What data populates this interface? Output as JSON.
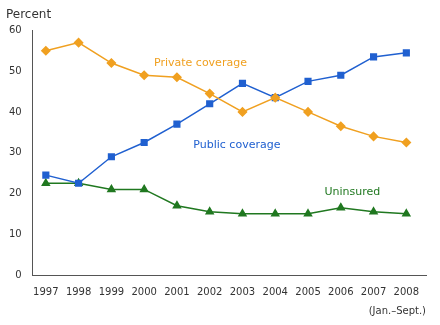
{
  "chart_data": {
    "type": "line",
    "ylabel": "Percent",
    "xlabel": "(Jan.–Sept.)",
    "x": [
      1997,
      1998,
      1999,
      2000,
      2001,
      2002,
      2003,
      2004,
      2005,
      2006,
      2007,
      2008
    ],
    "series": [
      {
        "name": "Private coverage",
        "color": "#f0a020",
        "marker": "diamond",
        "values": [
          55,
          57,
          52,
          49,
          48.5,
          44.5,
          40,
          43.5,
          40,
          36.5,
          34,
          32.5
        ]
      },
      {
        "name": "Public coverage",
        "color": "#2060d0",
        "marker": "square",
        "values": [
          24.5,
          22.5,
          29,
          32.5,
          37,
          42,
          47,
          43.5,
          47.5,
          49,
          53.5,
          54.5
        ]
      },
      {
        "name": "Uninsured",
        "color": "#207820",
        "marker": "triangle",
        "values": [
          22.5,
          22.5,
          21,
          21,
          17,
          15.5,
          15,
          15,
          15,
          16.5,
          15.5,
          15
        ]
      }
    ],
    "annotations": [
      {
        "text": "Private coverage",
        "x": 2000.3,
        "y": 50.5,
        "color": "#f0a020"
      },
      {
        "text": "Public coverage",
        "x": 2001.5,
        "y": 30.5,
        "color": "#2060d0"
      },
      {
        "text": "Uninsured",
        "x": 2005.5,
        "y": 19.0,
        "color": "#207820"
      }
    ],
    "xlim": [
      1996.6,
      2008.6
    ],
    "xticks": [
      1997,
      1998,
      1999,
      2000,
      2001,
      2002,
      2003,
      2004,
      2005,
      2006,
      2007,
      2008
    ],
    "ylim": [
      0,
      60
    ],
    "yticks": [
      0,
      10,
      20,
      30,
      40,
      50,
      60
    ],
    "grid": false
  }
}
